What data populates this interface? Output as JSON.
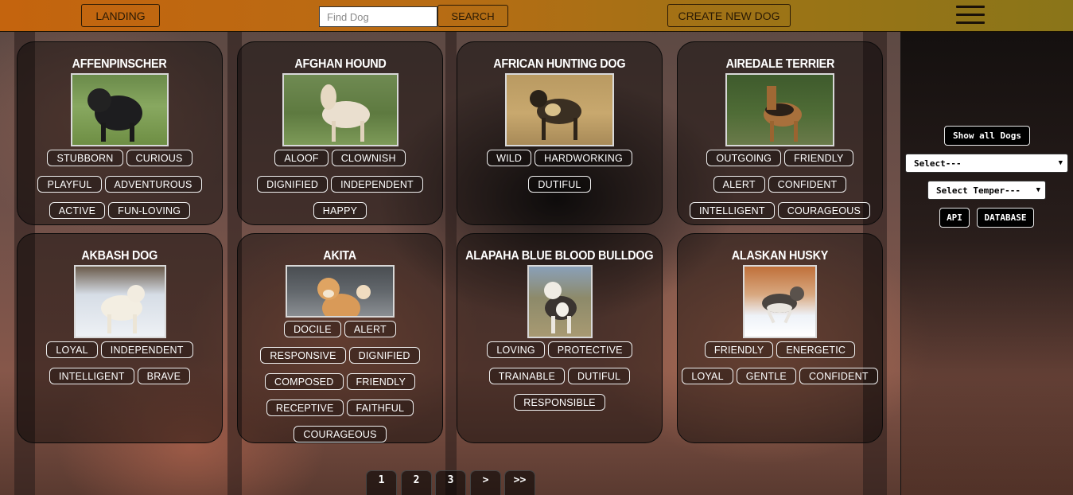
{
  "topbar": {
    "landing_label": "LANDING",
    "search_placeholder": "Find Dog",
    "search_label": "SEARCH",
    "create_label": "CREATE NEW DOG"
  },
  "sidebar": {
    "show_all_label": "Show all Dogs",
    "select_label": "Select---",
    "temper_label": "Select Temper---",
    "api_label": "API",
    "database_label": "DATABASE"
  },
  "dogs": [
    {
      "name": "Affenpinscher",
      "temperaments": [
        "STUBBORN",
        "CURIOUS",
        "PLAYFUL",
        "ADVENTUROUS",
        "ACTIVE",
        "FUN-LOVING"
      ]
    },
    {
      "name": "Afghan Hound",
      "temperaments": [
        "ALOOF",
        "CLOWNISH",
        "DIGNIFIED",
        "INDEPENDENT",
        "HAPPY"
      ]
    },
    {
      "name": "African Hunting Dog",
      "temperaments": [
        "WILD",
        "HARDWORKING",
        "DUTIFUL"
      ]
    },
    {
      "name": "Airedale Terrier",
      "temperaments": [
        "OUTGOING",
        "FRIENDLY",
        "ALERT",
        "CONFIDENT",
        "INTELLIGENT",
        "COURAGEOUS"
      ]
    },
    {
      "name": "Akbash Dog",
      "temperaments": [
        "LOYAL",
        "INDEPENDENT",
        "INTELLIGENT",
        "BRAVE"
      ]
    },
    {
      "name": "Akita",
      "temperaments": [
        "DOCILE",
        "ALERT",
        "RESPONSIVE",
        "DIGNIFIED",
        "COMPOSED",
        "FRIENDLY",
        "RECEPTIVE",
        "FAITHFUL",
        "COURAGEOUS"
      ]
    },
    {
      "name": "Alapaha Blue Blood Bulldog",
      "temperaments": [
        "LOVING",
        "PROTECTIVE",
        "TRAINABLE",
        "DUTIFUL",
        "RESPONSIBLE"
      ]
    },
    {
      "name": "Alaskan Husky",
      "temperaments": [
        "FRIENDLY",
        "ENERGETIC",
        "LOYAL",
        "GENTLE",
        "CONFIDENT"
      ]
    }
  ],
  "pagination": [
    "1",
    "2",
    "3",
    ">",
    ">>"
  ]
}
